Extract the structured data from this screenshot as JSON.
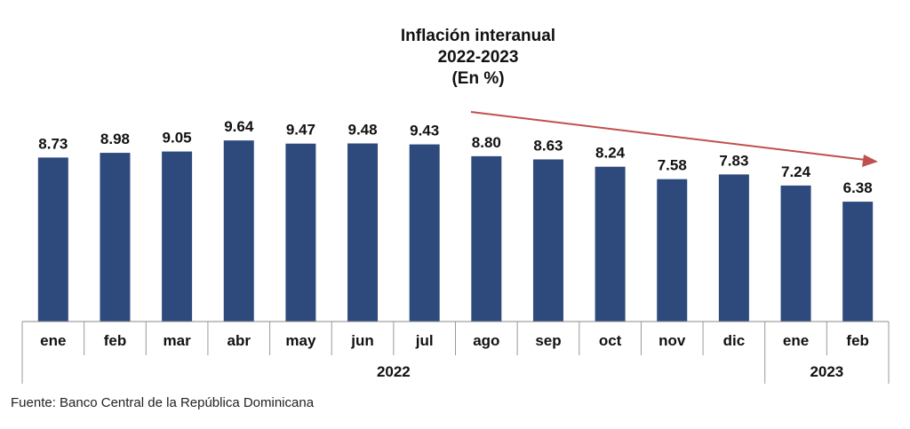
{
  "chart_data": {
    "type": "bar",
    "title_lines": [
      "Inflación interanual",
      "2022-2023",
      "(En %)"
    ],
    "categories": [
      "ene",
      "feb",
      "mar",
      "abr",
      "may",
      "jun",
      "jul",
      "ago",
      "sep",
      "oct",
      "nov",
      "dic",
      "ene",
      "feb"
    ],
    "values": [
      8.73,
      8.98,
      9.05,
      9.64,
      9.47,
      9.48,
      9.43,
      8.8,
      8.63,
      8.24,
      7.58,
      7.83,
      7.24,
      6.38
    ],
    "value_labels": [
      "8.73",
      "8.98",
      "9.05",
      "9.64",
      "9.47",
      "9.48",
      "9.43",
      "8.80",
      "8.63",
      "8.24",
      "7.58",
      "7.83",
      "7.24",
      "6.38"
    ],
    "groups": [
      {
        "label": "2022",
        "count": 12
      },
      {
        "label": "2023",
        "count": 2
      }
    ],
    "ylim": [
      0,
      10
    ],
    "grid": false,
    "bar_color": "#2e4a7d",
    "trend_arrow_color": "#c0504d"
  },
  "footer": {
    "source": "Fuente: Banco Central de la República Dominicana"
  }
}
